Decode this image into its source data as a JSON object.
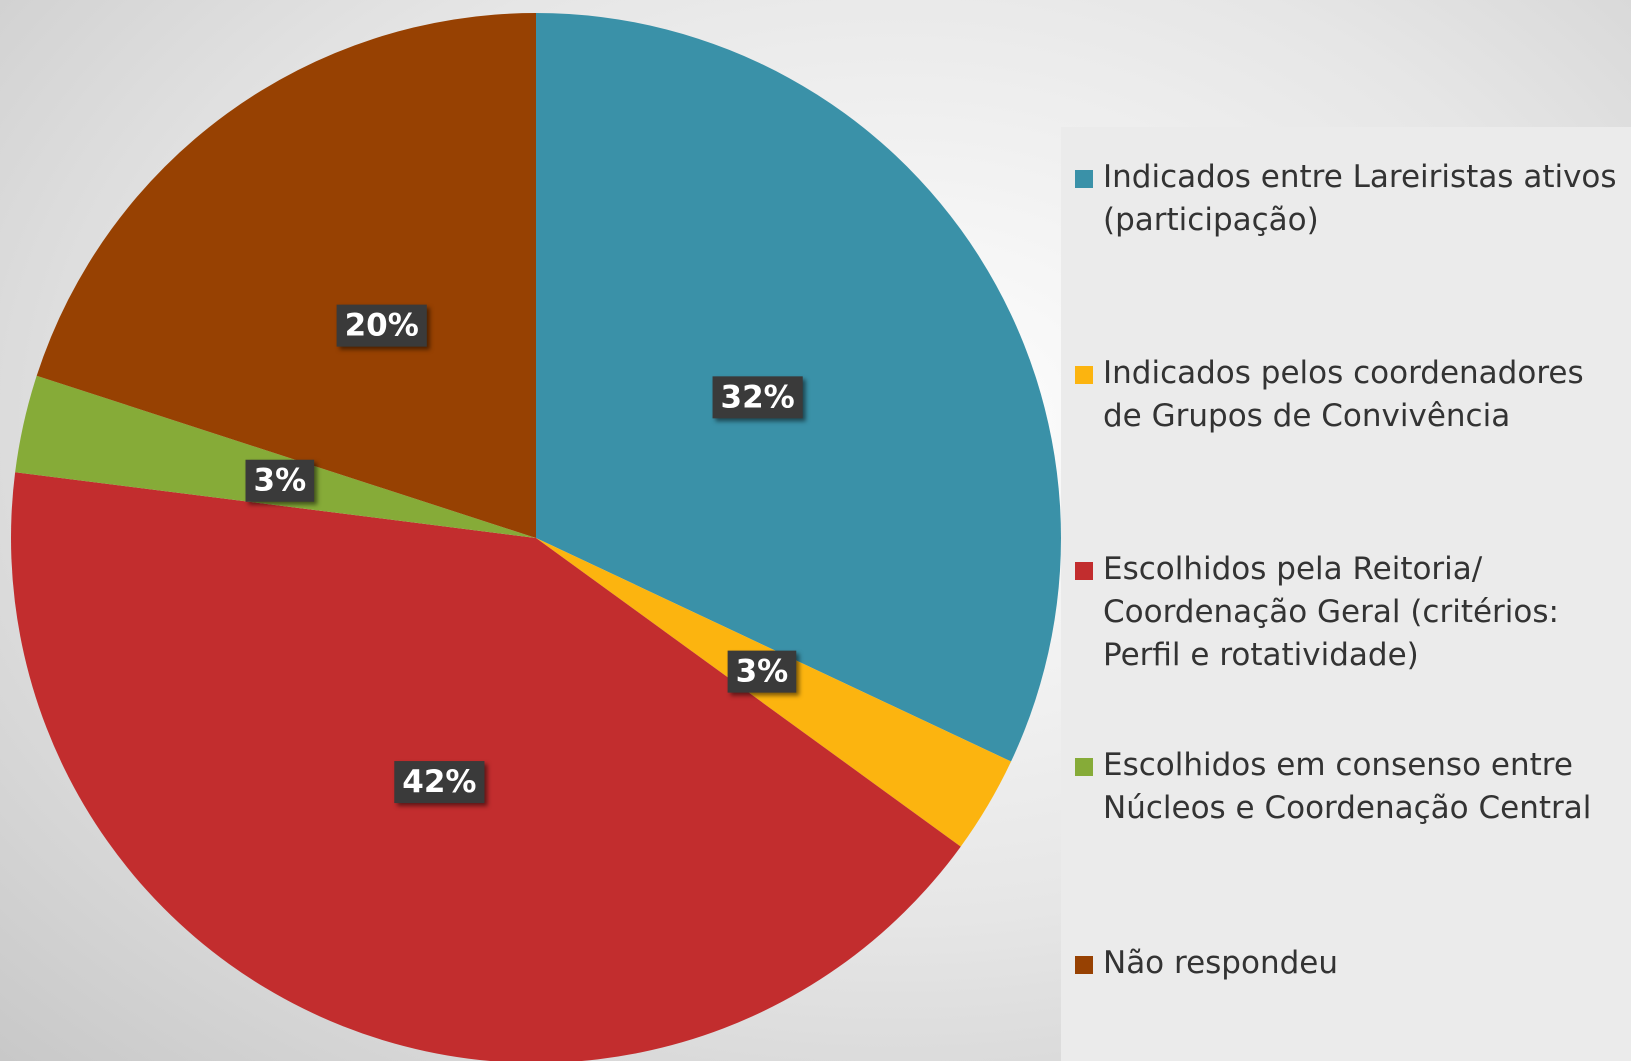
{
  "chart_data": {
    "type": "pie",
    "categories": [
      "Indicados entre Lareiristas ativos (participação)",
      "Indicados pelos coordenadores de Grupos de Convivência",
      "Escolhidos pela Reitoria/ Coordenação Geral (critérios: Perfil e rotatividade)",
      "Escolhidos em consenso  entre Núcleos e Coordenação Central",
      "Não respondeu"
    ],
    "values": [
      32,
      3,
      42,
      3,
      20
    ],
    "value_labels": [
      "32%",
      "3%",
      "42%",
      "3%",
      "20%"
    ],
    "colors": [
      "#3a91a8",
      "#fcb40f",
      "#c22d2e",
      "#86ab38",
      "#974102"
    ],
    "legend": "right"
  }
}
